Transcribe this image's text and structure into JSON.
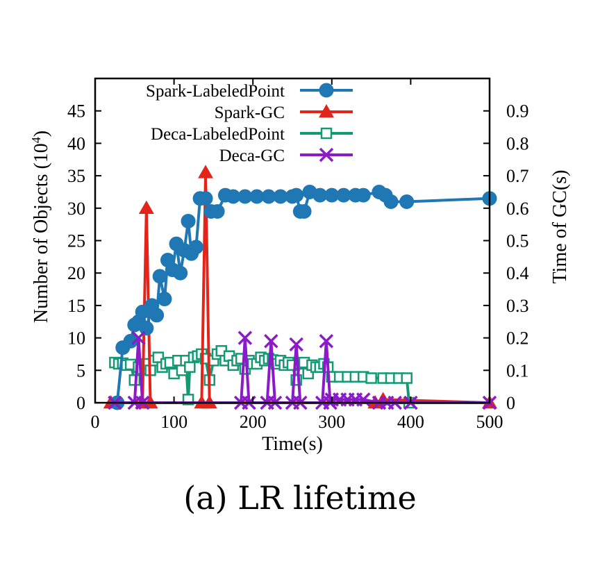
{
  "caption": "(a) LR lifetime",
  "colors": {
    "spark_lp": "#1f77b4",
    "spark_gc": "#e3241b",
    "deca_lp": "#149975",
    "deca_gc": "#8b1ac8"
  },
  "chart_data": {
    "type": "line",
    "xlabel": "Time(s)",
    "ylabel": "Number of Objects",
    "ylabel_unit_base": "10",
    "ylabel_unit_exp": "4",
    "y2label": "Time of GC(s)",
    "xlim": [
      0,
      500
    ],
    "ylim": [
      0,
      50
    ],
    "y2lim": [
      0,
      1.0
    ],
    "xticks": [
      0,
      100,
      200,
      300,
      400,
      500
    ],
    "yticks": [
      0,
      5,
      10,
      15,
      20,
      25,
      30,
      35,
      40,
      45
    ],
    "y2ticks": [
      0,
      0.1,
      0.2,
      0.3,
      0.4,
      0.5,
      0.6,
      0.7,
      0.8,
      0.9
    ],
    "legend_position": "top-left",
    "series": [
      {
        "name": "Spark-LabeledPoint",
        "axis": "left",
        "marker": "circle",
        "x": [
          28,
          35,
          45,
          50,
          55,
          60,
          65,
          72,
          78,
          82,
          88,
          92,
          98,
          103,
          108,
          113,
          118,
          122,
          128,
          133,
          140,
          147,
          155,
          165,
          175,
          190,
          205,
          220,
          235,
          250,
          255,
          260,
          265,
          272,
          285,
          300,
          315,
          330,
          340,
          360,
          368,
          375,
          395,
          500
        ],
        "y": [
          0,
          8.5,
          9.5,
          12,
          12.5,
          14,
          11.5,
          15,
          13.5,
          19.5,
          16,
          22,
          20.5,
          24.5,
          20,
          23.5,
          28,
          23,
          24,
          31.5,
          31.5,
          29.5,
          29.5,
          32,
          31.8,
          31.8,
          31.8,
          31.8,
          31.8,
          31.8,
          32,
          29.5,
          29.5,
          32.5,
          32,
          32,
          32,
          32,
          32,
          32.5,
          32,
          31,
          31,
          31.5
        ]
      },
      {
        "name": "Spark-GC",
        "axis": "right",
        "marker": "triangle",
        "x": [
          20,
          60,
          65,
          70,
          135,
          140,
          145,
          355,
          365,
          500
        ],
        "y": [
          0,
          0,
          0.6,
          0,
          0,
          0.71,
          0,
          0,
          0.01,
          0
        ]
      },
      {
        "name": "Deca-LabeledPoint",
        "axis": "left",
        "marker": "square",
        "x": [
          25,
          30,
          35,
          40,
          45,
          50,
          55,
          60,
          65,
          70,
          75,
          80,
          85,
          90,
          95,
          100,
          105,
          110,
          115,
          118,
          120,
          125,
          130,
          135,
          140,
          145,
          150,
          155,
          160,
          165,
          170,
          175,
          180,
          185,
          190,
          195,
          200,
          205,
          210,
          215,
          220,
          225,
          230,
          235,
          240,
          245,
          250,
          255,
          260,
          265,
          270,
          275,
          280,
          285,
          290,
          295,
          300,
          310,
          320,
          330,
          340,
          350,
          365,
          375,
          385,
          395,
          398
        ],
        "y": [
          6.2,
          6,
          6.1,
          5.8,
          5.9,
          3.5,
          5.5,
          5.2,
          6,
          5,
          6.5,
          7,
          5.5,
          6,
          6.2,
          4.5,
          6.5,
          5,
          6.5,
          0.5,
          5.5,
          7,
          7.2,
          7.5,
          6.8,
          3.5,
          6.5,
          7.5,
          8,
          6.5,
          7.2,
          5.8,
          6.5,
          6.8,
          5.2,
          6.5,
          6,
          6,
          7,
          6.5,
          6.8,
          6.6,
          6,
          6.5,
          5.8,
          6.2,
          5.8,
          3.5,
          6,
          6.2,
          4.5,
          5.8,
          5.5,
          5.5,
          6,
          5.5,
          4,
          4,
          4,
          4,
          4,
          3.8,
          3.8,
          3.8,
          3.8,
          3.8,
          0
        ]
      },
      {
        "name": "Deca-GC",
        "axis": "right",
        "marker": "x",
        "x": [
          25,
          50,
          55,
          60,
          185,
          190,
          195,
          218,
          223,
          228,
          250,
          255,
          260,
          288,
          293,
          298,
          300,
          310,
          320,
          330,
          340,
          360,
          370,
          380,
          400,
          500
        ],
        "y": [
          0,
          0,
          0.2,
          0,
          0,
          0.2,
          0,
          0,
          0.19,
          0,
          0,
          0.18,
          0,
          0,
          0.19,
          0,
          0.01,
          0.01,
          0.01,
          0.01,
          0.01,
          0,
          0,
          0,
          0,
          0
        ]
      }
    ]
  }
}
